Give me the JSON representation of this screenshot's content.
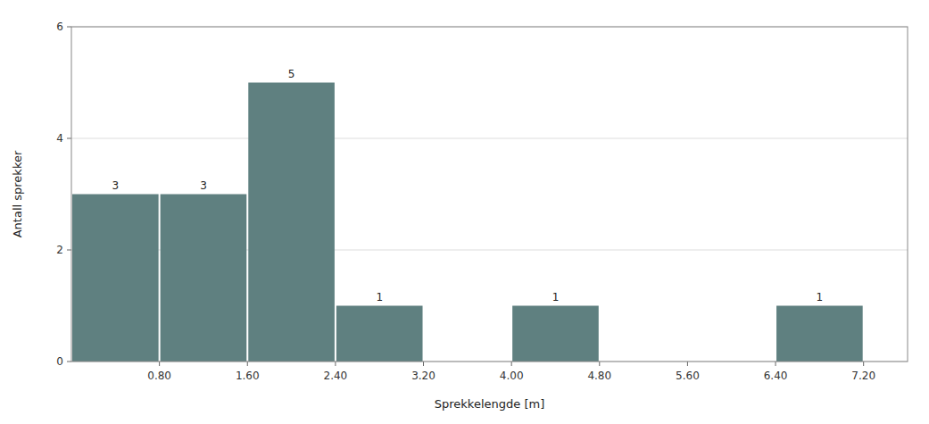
{
  "chart_data": {
    "type": "histogram",
    "bins": [
      0.0,
      0.8,
      1.6,
      2.4,
      3.2,
      4.0,
      4.8,
      5.6,
      6.4,
      7.2
    ],
    "values": [
      3,
      3,
      5,
      1,
      0,
      1,
      0,
      0,
      1
    ],
    "color": "#5f8080",
    "xlabel": "Sprekkelengde [m]",
    "ylabel": "Antall sprekker",
    "xlim": [
      0.0,
      7.6
    ],
    "xticks": [
      {
        "value": 0.8,
        "label": "0.80"
      },
      {
        "value": 1.6,
        "label": "1.60"
      },
      {
        "value": 2.4,
        "label": "2.40"
      },
      {
        "value": 3.2,
        "label": "3.20"
      },
      {
        "value": 4.0,
        "label": "4.00"
      },
      {
        "value": 4.8,
        "label": "4.80"
      },
      {
        "value": 5.6,
        "label": "5.60"
      },
      {
        "value": 6.4,
        "label": "6.40"
      },
      {
        "value": 7.2,
        "label": "7.20"
      }
    ],
    "ylim": [
      0,
      6
    ],
    "yticks": [
      0,
      2,
      4,
      6
    ],
    "grid": true,
    "data_labels": true
  }
}
